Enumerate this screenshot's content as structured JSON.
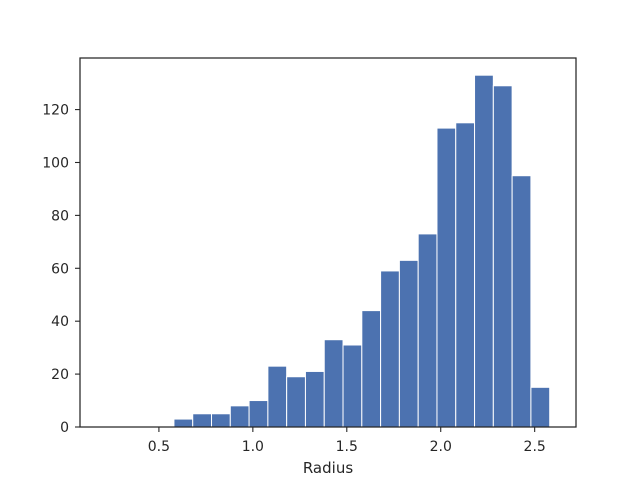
{
  "chart_data": {
    "type": "bar",
    "title": "",
    "xlabel": "Radius",
    "ylabel": "",
    "xlim": [
      0.08,
      2.72
    ],
    "ylim": [
      0,
      139.5
    ],
    "x_ticks": [
      0.5,
      1.0,
      1.5,
      2.0,
      2.5
    ],
    "x_tick_labels": [
      "0.5",
      "1.0",
      "1.5",
      "2.0",
      "2.5"
    ],
    "y_ticks": [
      0,
      20,
      40,
      60,
      80,
      100,
      120
    ],
    "y_tick_labels": [
      "0",
      "20",
      "40",
      "60",
      "80",
      "100",
      "120"
    ],
    "grid": false,
    "bin_edges": [
      0.58,
      0.68,
      0.78,
      0.88,
      0.98,
      1.08,
      1.18,
      1.28,
      1.38,
      1.48,
      1.58,
      1.68,
      1.78,
      1.88,
      1.98,
      2.08,
      2.18,
      2.28,
      2.38,
      2.48,
      2.58
    ],
    "values": [
      3,
      5,
      5,
      8,
      10,
      23,
      19,
      21,
      33,
      31,
      44,
      59,
      63,
      73,
      113,
      115,
      133,
      129,
      95,
      15
    ],
    "bar_color": "#4c72b0",
    "bar_edge_color": "#ffffff",
    "axes_color": "#262626"
  }
}
